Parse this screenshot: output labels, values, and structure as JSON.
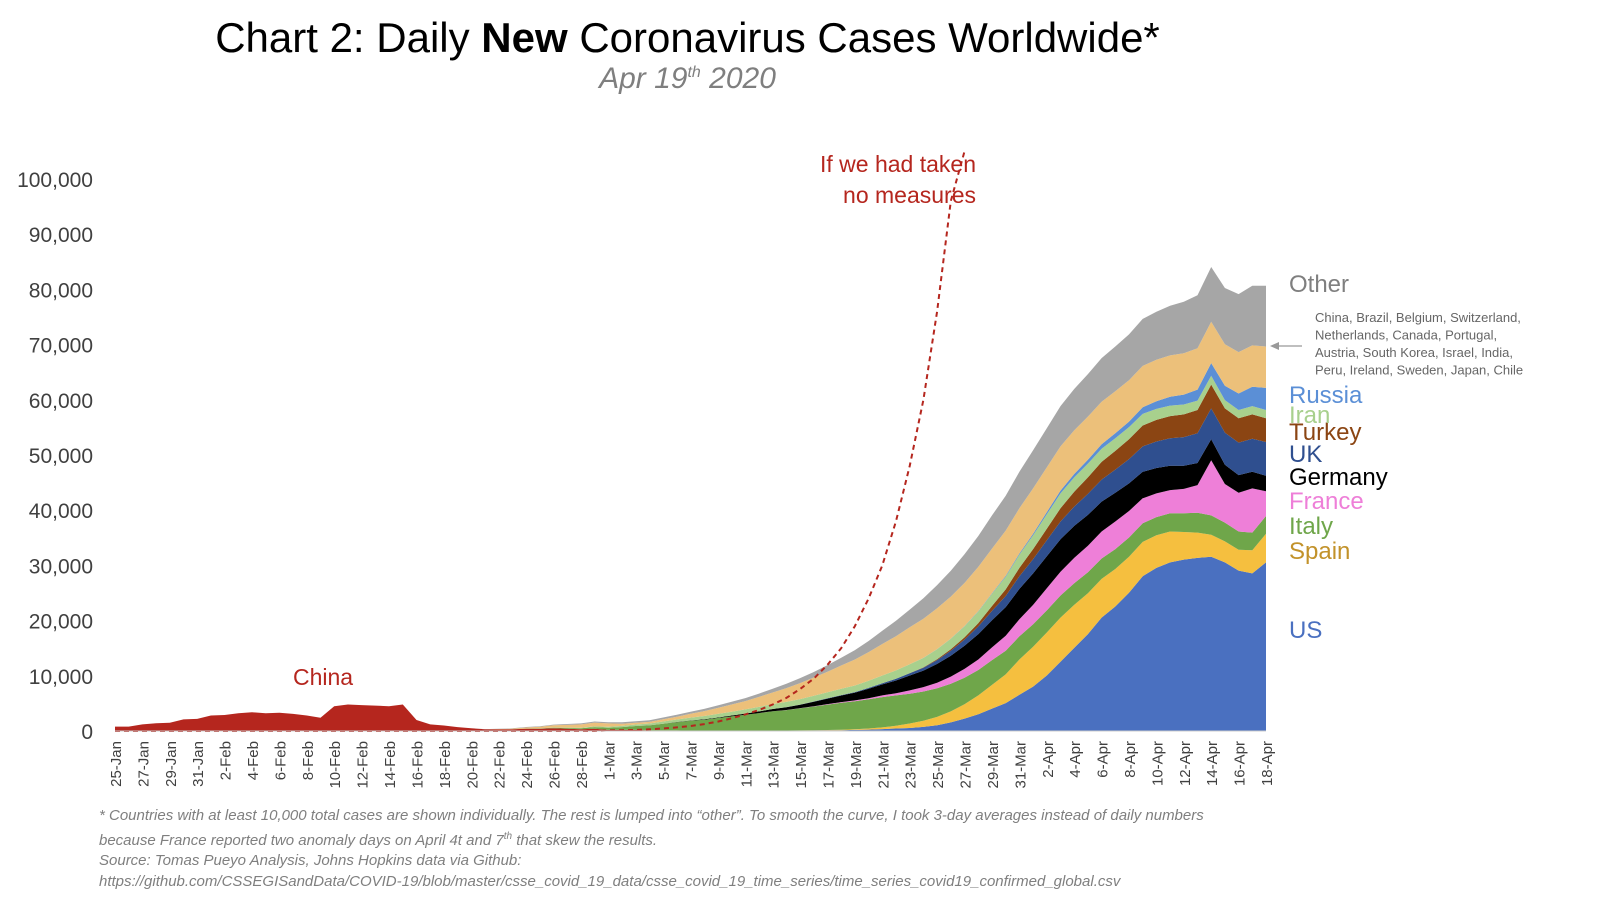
{
  "header": {
    "title_prefix": "Chart 2: Daily ",
    "title_bold": "New",
    "title_suffix": " Coronavirus Cases Worldwide*",
    "subtitle_pre": "Apr 19",
    "subtitle_sup": "th",
    "subtitle_post": " 2020"
  },
  "footnote": {
    "line1_a": "* Countries with at least 10,000 total cases are shown individually. The rest is lumped into “other”. To smooth the curve, I took 3-day averages instead of daily numbers",
    "line2_a": "because France reported two anomaly days on April 4t and 7",
    "line2_sup": "th",
    "line2_b": " that skew the results.",
    "line3": "Source: Tomas Pueyo Analysis, Johns Hopkins data via Github:",
    "line4": "https://github.com/CSSEGISandData/COVID-19/blob/master/csse_covid_19_data/csse_covid_19_time_series/time_series_covid19_confirmed_global.csv"
  },
  "chart_data": {
    "type": "area",
    "stacked": true,
    "ylim": [
      0,
      100000
    ],
    "yticks": [
      0,
      10000,
      20000,
      30000,
      40000,
      50000,
      60000,
      70000,
      80000,
      90000,
      100000
    ],
    "ytick_labels": [
      "0",
      "10,000",
      "20,000",
      "30,000",
      "40,000",
      "50,000",
      "60,000",
      "70,000",
      "80,000",
      "90,000",
      "100,000"
    ],
    "x_labels": [
      "25-Jan",
      "27-Jan",
      "29-Jan",
      "31-Jan",
      "2-Feb",
      "4-Feb",
      "6-Feb",
      "8-Feb",
      "10-Feb",
      "12-Feb",
      "14-Feb",
      "16-Feb",
      "18-Feb",
      "20-Feb",
      "22-Feb",
      "24-Feb",
      "26-Feb",
      "28-Feb",
      "1-Mar",
      "3-Mar",
      "5-Mar",
      "7-Mar",
      "9-Mar",
      "11-Mar",
      "13-Mar",
      "15-Mar",
      "17-Mar",
      "19-Mar",
      "21-Mar",
      "23-Mar",
      "25-Mar",
      "27-Mar",
      "29-Mar",
      "31-Mar",
      "2-Apr",
      "4-Apr",
      "6-Apr",
      "8-Apr",
      "10-Apr",
      "12-Apr",
      "14-Apr",
      "16-Apr",
      "18-Apr"
    ],
    "x_start": "25-Jan",
    "x_end": "18-Apr",
    "series": [
      {
        "name": "China",
        "color": "#b5261e",
        "label_color": "#b5261e",
        "values": [
          800,
          800,
          1200,
          1400,
          1500,
          2100,
          2200,
          2800,
          2900,
          3200,
          3400,
          3200,
          3300,
          3100,
          2800,
          2400,
          4500,
          4800,
          4700,
          4600,
          4500,
          4800,
          2000,
          1200,
          1000,
          700,
          500,
          300,
          300,
          300,
          400,
          400,
          500,
          400,
          300,
          400,
          200,
          200,
          200,
          100,
          100,
          100,
          50,
          50,
          50,
          50,
          50,
          50,
          50,
          50,
          50,
          50,
          50,
          50,
          50,
          50,
          50,
          50,
          50,
          50,
          50,
          50,
          50,
          50,
          50,
          50,
          50,
          50,
          50,
          50,
          50,
          50,
          50,
          50,
          50,
          50,
          50,
          50,
          50,
          50,
          50,
          50,
          50,
          50,
          50
        ]
      },
      {
        "name": "US",
        "color": "#4a70c0",
        "label_color": "#4a70c0",
        "values": [
          0,
          0,
          0,
          0,
          0,
          0,
          0,
          0,
          0,
          0,
          0,
          0,
          0,
          0,
          0,
          0,
          0,
          0,
          0,
          0,
          0,
          0,
          0,
          0,
          0,
          0,
          0,
          0,
          0,
          0,
          0,
          0,
          0,
          0,
          0,
          0,
          0,
          0,
          0,
          0,
          0,
          0,
          0,
          0,
          0,
          0,
          0,
          0,
          10,
          20,
          30,
          50,
          80,
          100,
          150,
          200,
          300,
          400,
          500,
          700,
          1000,
          1500,
          2200,
          3000,
          4000,
          5000,
          6500,
          8000,
          10000,
          12500,
          15000,
          17500,
          20500,
          22500,
          25000,
          28000,
          29500,
          30500,
          31000,
          31300,
          31500,
          30500,
          29000,
          28500,
          30500
        ]
      },
      {
        "name": "Spain",
        "color": "#f5bf3f",
        "label_color": "#c2922a",
        "values": [
          0,
          0,
          0,
          0,
          0,
          0,
          0,
          0,
          0,
          0,
          0,
          0,
          0,
          0,
          0,
          0,
          0,
          0,
          0,
          0,
          0,
          0,
          0,
          0,
          0,
          0,
          0,
          0,
          0,
          0,
          0,
          0,
          0,
          0,
          0,
          0,
          0,
          0,
          0,
          0,
          0,
          0,
          0,
          0,
          0,
          0,
          0,
          0,
          10,
          20,
          30,
          40,
          60,
          80,
          100,
          200,
          300,
          500,
          800,
          1100,
          1500,
          2000,
          2600,
          3400,
          4300,
          5200,
          6400,
          7200,
          7800,
          8000,
          7800,
          7400,
          7000,
          6800,
          6500,
          6200,
          5900,
          5600,
          5000,
          4600,
          4000,
          3800,
          3800,
          4200,
          5200
        ]
      },
      {
        "name": "Italy",
        "color": "#6fa64a",
        "label_color": "#6fa64a",
        "values": [
          0,
          0,
          0,
          0,
          0,
          0,
          0,
          0,
          0,
          0,
          0,
          0,
          0,
          0,
          0,
          0,
          0,
          0,
          0,
          0,
          0,
          0,
          0,
          0,
          0,
          0,
          0,
          0,
          0,
          10,
          30,
          50,
          100,
          150,
          200,
          300,
          400,
          500,
          700,
          900,
          1200,
          1500,
          1800,
          2000,
          2300,
          2600,
          2900,
          3200,
          3500,
          3700,
          4000,
          4300,
          4600,
          4900,
          5100,
          5300,
          5500,
          5500,
          5400,
          5300,
          5200,
          5000,
          4800,
          4600,
          4500,
          4300,
          4200,
          4100,
          4000,
          4000,
          3900,
          3800,
          3700,
          3600,
          3500,
          3400,
          3300,
          3300,
          3400,
          3600,
          3500,
          3400,
          3300,
          3200,
          3200
        ]
      },
      {
        "name": "France",
        "color": "#ee7fd8",
        "label_color": "#ee7fd8",
        "values": [
          0,
          0,
          0,
          0,
          0,
          0,
          0,
          0,
          0,
          0,
          0,
          0,
          0,
          0,
          0,
          0,
          0,
          0,
          0,
          0,
          0,
          0,
          0,
          0,
          0,
          0,
          0,
          0,
          0,
          0,
          0,
          0,
          0,
          0,
          0,
          0,
          0,
          0,
          0,
          0,
          0,
          0,
          0,
          0,
          0,
          0,
          0,
          0,
          10,
          20,
          40,
          60,
          80,
          100,
          150,
          200,
          300,
          400,
          600,
          800,
          1000,
          1300,
          1600,
          1900,
          2300,
          2700,
          3100,
          3500,
          4000,
          4300,
          4600,
          4800,
          4900,
          5000,
          4800,
          4500,
          4300,
          4200,
          4400,
          5000,
          10000,
          7000,
          7000,
          8000,
          4500
        ]
      },
      {
        "name": "Germany",
        "color": "#000000",
        "label_color": "#000000",
        "values": [
          0,
          0,
          0,
          0,
          0,
          0,
          0,
          0,
          0,
          0,
          0,
          0,
          0,
          0,
          0,
          0,
          0,
          0,
          0,
          0,
          0,
          0,
          0,
          0,
          0,
          0,
          0,
          0,
          0,
          0,
          0,
          0,
          0,
          0,
          0,
          0,
          0,
          0,
          0,
          10,
          20,
          30,
          50,
          80,
          100,
          150,
          200,
          300,
          400,
          500,
          600,
          800,
          1000,
          1200,
          1400,
          1700,
          2000,
          2300,
          2700,
          3000,
          3400,
          3800,
          4200,
          4600,
          4900,
          5200,
          5500,
          5700,
          5800,
          5900,
          5800,
          5600,
          5400,
          5200,
          5000,
          4800,
          4600,
          4400,
          4200,
          4000,
          3800,
          3500,
          3200,
          3000,
          2800
        ]
      },
      {
        "name": "UK",
        "color": "#2f4f8f",
        "label_color": "#2f4f8f",
        "values": [
          0,
          0,
          0,
          0,
          0,
          0,
          0,
          0,
          0,
          0,
          0,
          0,
          0,
          0,
          0,
          0,
          0,
          0,
          0,
          0,
          0,
          0,
          0,
          0,
          0,
          0,
          0,
          0,
          0,
          0,
          0,
          0,
          0,
          0,
          0,
          0,
          0,
          0,
          0,
          0,
          0,
          0,
          0,
          0,
          0,
          0,
          0,
          0,
          10,
          20,
          30,
          40,
          60,
          80,
          100,
          150,
          200,
          300,
          400,
          500,
          700,
          900,
          1100,
          1400,
          1700,
          2000,
          2300,
          2600,
          2900,
          3200,
          3500,
          3800,
          4000,
          4200,
          4400,
          4600,
          4800,
          5000,
          5200,
          5400,
          5600,
          5800,
          5900,
          6000,
          6100
        ]
      },
      {
        "name": "Turkey",
        "color": "#8b4513",
        "label_color": "#8b4513",
        "values": [
          0,
          0,
          0,
          0,
          0,
          0,
          0,
          0,
          0,
          0,
          0,
          0,
          0,
          0,
          0,
          0,
          0,
          0,
          0,
          0,
          0,
          0,
          0,
          0,
          0,
          0,
          0,
          0,
          0,
          0,
          0,
          0,
          0,
          0,
          0,
          0,
          0,
          0,
          0,
          0,
          0,
          0,
          0,
          0,
          0,
          0,
          0,
          0,
          0,
          0,
          0,
          0,
          0,
          0,
          0,
          0,
          10,
          20,
          40,
          80,
          150,
          250,
          400,
          600,
          900,
          1200,
          1500,
          1800,
          2100,
          2400,
          2700,
          3000,
          3200,
          3400,
          3600,
          3800,
          3900,
          4000,
          4100,
          4200,
          4300,
          4400,
          4400,
          4400,
          4300
        ]
      },
      {
        "name": "Iran",
        "color": "#a8d08d",
        "label_color": "#a8d08d",
        "values": [
          0,
          0,
          0,
          0,
          0,
          0,
          0,
          0,
          0,
          0,
          0,
          0,
          0,
          0,
          0,
          0,
          0,
          0,
          0,
          0,
          0,
          0,
          0,
          0,
          0,
          0,
          0,
          0,
          0,
          5,
          10,
          20,
          40,
          60,
          90,
          130,
          170,
          220,
          280,
          340,
          400,
          460,
          520,
          580,
          640,
          700,
          760,
          820,
          880,
          940,
          1000,
          1050,
          1100,
          1150,
          1200,
          1300,
          1400,
          1500,
          1600,
          1700,
          1800,
          1900,
          2000,
          2100,
          2200,
          2300,
          2400,
          2500,
          2600,
          2700,
          2600,
          2500,
          2400,
          2300,
          2200,
          2100,
          2000,
          1900,
          1800,
          1700,
          1600,
          1500,
          1500,
          1500,
          1500
        ]
      },
      {
        "name": "Russia",
        "color": "#5b8fd6",
        "label_color": "#5b8fd6",
        "values": [
          0,
          0,
          0,
          0,
          0,
          0,
          0,
          0,
          0,
          0,
          0,
          0,
          0,
          0,
          0,
          0,
          0,
          0,
          0,
          0,
          0,
          0,
          0,
          0,
          0,
          0,
          0,
          0,
          0,
          0,
          0,
          0,
          0,
          0,
          0,
          0,
          0,
          0,
          0,
          0,
          0,
          0,
          0,
          0,
          0,
          0,
          0,
          0,
          0,
          0,
          0,
          0,
          0,
          0,
          0,
          0,
          0,
          0,
          10,
          20,
          30,
          40,
          60,
          80,
          100,
          150,
          200,
          300,
          400,
          500,
          600,
          700,
          800,
          900,
          1000,
          1200,
          1400,
          1600,
          1800,
          2000,
          2300,
          2600,
          3000,
          3500,
          4000
        ]
      },
      {
        "name": "China, Brazil, Belgium, Switzerland, Netherlands, Canada, Portugal, Austria, South Korea, Israel, India, Peru, Ireland, Sweden, Japan, Chile",
        "color": "#ecc07a",
        "label_color": "#666666",
        "values": [
          0,
          0,
          0,
          0,
          0,
          0,
          0,
          0,
          0,
          0,
          0,
          0,
          0,
          0,
          0,
          0,
          0,
          0,
          0,
          0,
          0,
          0,
          0,
          0,
          0,
          0,
          0,
          20,
          60,
          120,
          200,
          300,
          400,
          500,
          600,
          700,
          600,
          400,
          300,
          300,
          400,
          500,
          700,
          900,
          1100,
          1300,
          1500,
          1800,
          2100,
          2500,
          2900,
          3300,
          3700,
          4200,
          4700,
          5200,
          5700,
          6200,
          6700,
          7100,
          7400,
          7600,
          7800,
          8000,
          8100,
          8200,
          8200,
          8200,
          8100,
          8000,
          7900,
          7800,
          7700,
          7600,
          7500,
          7500,
          7500,
          7500,
          7500,
          7500,
          7500,
          7500,
          7500,
          7500,
          7500
        ]
      },
      {
        "name": "Other",
        "color": "#a6a6a6",
        "label_color": "#7f7f7f",
        "values": [
          0,
          0,
          0,
          0,
          0,
          0,
          0,
          0,
          0,
          0,
          0,
          0,
          0,
          0,
          0,
          0,
          0,
          0,
          0,
          0,
          0,
          0,
          0,
          0,
          0,
          0,
          0,
          20,
          40,
          60,
          80,
          100,
          120,
          150,
          180,
          200,
          220,
          250,
          280,
          300,
          320,
          350,
          380,
          400,
          450,
          500,
          550,
          600,
          700,
          800,
          900,
          1000,
          1200,
          1400,
          1700,
          2000,
          2400,
          2800,
          3200,
          3700,
          4200,
          4700,
          5200,
          5600,
          6000,
          6300,
          6600,
          6900,
          7100,
          7300,
          7500,
          7700,
          7900,
          8100,
          8300,
          8500,
          8700,
          9000,
          9300,
          9600,
          9900,
          10200,
          10500,
          10800,
          11000
        ]
      }
    ],
    "annotations": [
      {
        "text_line1": "If we had taken",
        "text_line2": "no measures",
        "color": "#b5261e"
      },
      {
        "text": "China",
        "color": "#b5261e"
      }
    ],
    "projection": {
      "description_visible": false,
      "color": "#b5261e",
      "values": [
        0,
        0,
        0,
        0,
        0,
        0,
        0,
        0,
        0,
        0,
        0,
        0,
        0,
        0,
        0,
        0,
        0,
        0,
        0,
        0,
        0,
        0,
        0,
        0,
        0,
        0,
        0,
        0,
        0,
        0,
        0,
        0,
        0,
        0,
        0,
        0,
        100,
        150,
        200,
        300,
        450,
        650,
        900,
        1250,
        1700,
        2300,
        3000,
        3800,
        4800,
        6000,
        7600,
        9500,
        12000,
        15000,
        19000,
        24000,
        30000,
        38000,
        48000,
        60000,
        76000,
        96000,
        120000
      ]
    },
    "grid": false,
    "legend_placement": "right"
  }
}
